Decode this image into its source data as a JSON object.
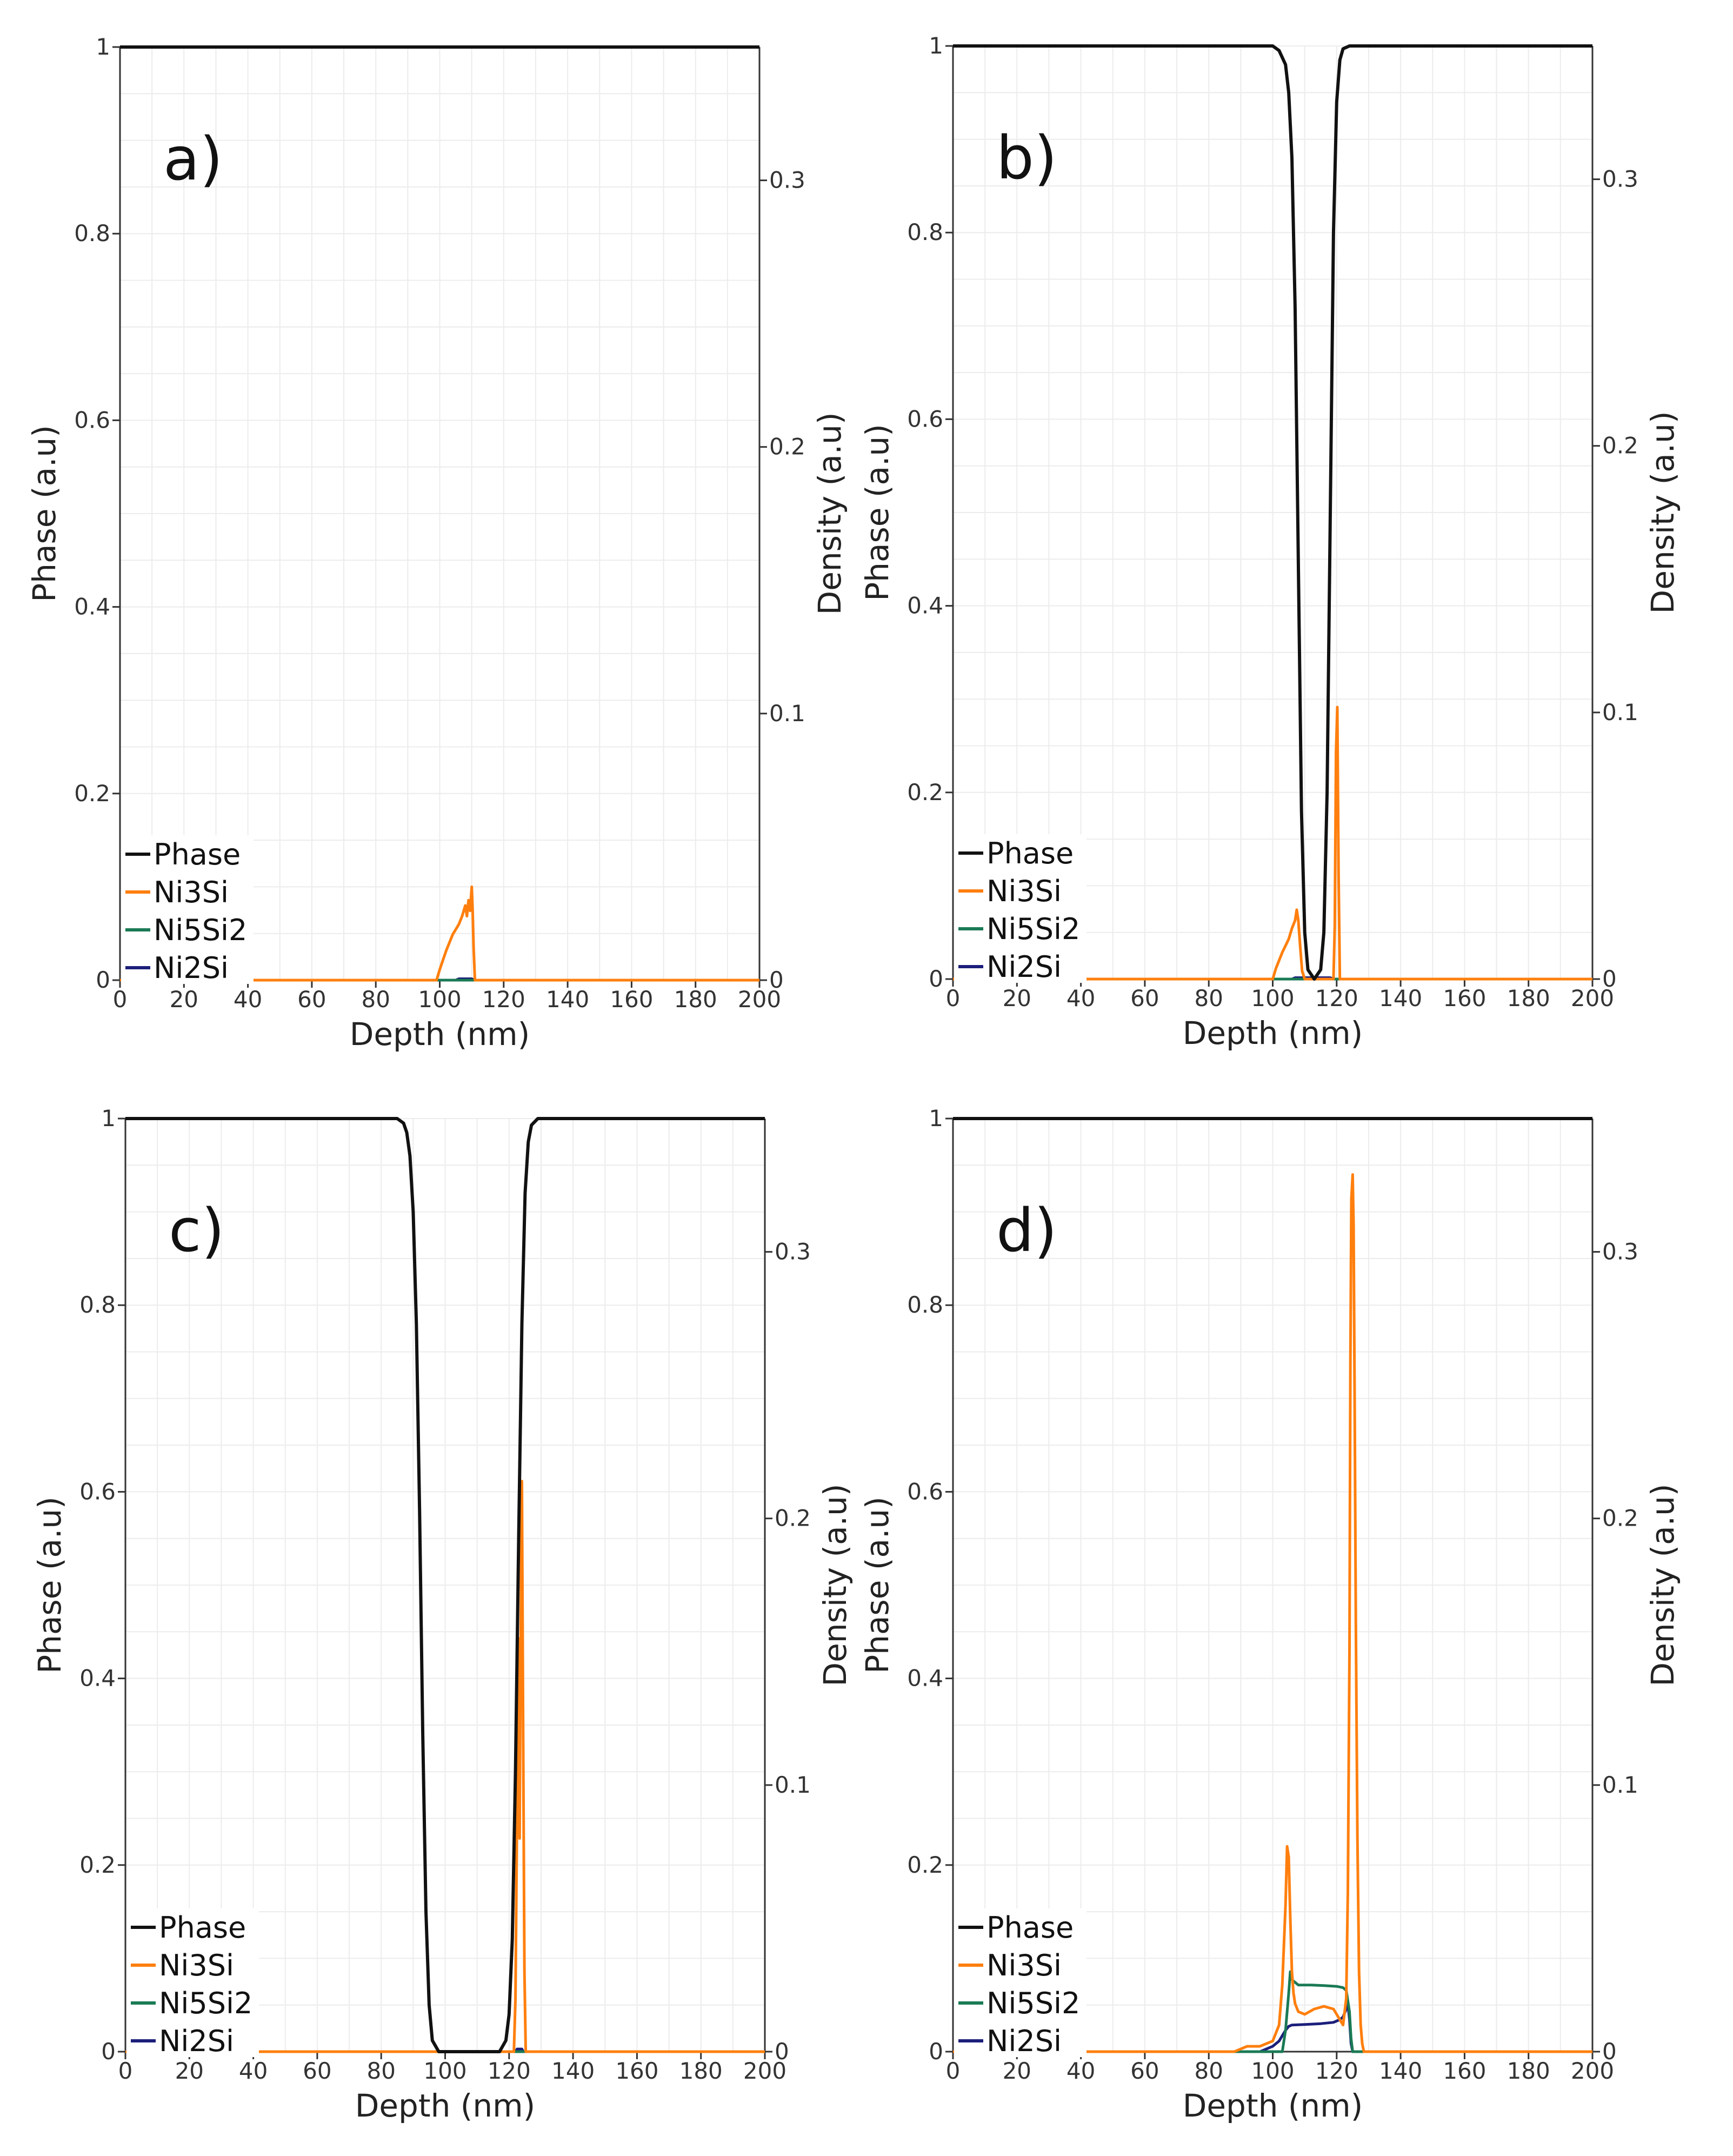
{
  "figure": {
    "colors": {
      "phase": "#111111",
      "ni3si": "#ff7f0e",
      "ni5si2": "#1a7a55",
      "ni2si": "#1c1f7a",
      "grid": "#ececec",
      "axis": "#333333"
    },
    "labels": {
      "xlabel": "Depth (nm)",
      "ylabel_left": "Phase (a.u)",
      "ylabel_right": "Density (a.u)"
    }
  },
  "chart_data": [
    {
      "type": "line",
      "panel": "a)",
      "xlabel": "Depth (nm)",
      "ylabel": "Phase (a.u)",
      "ylabel_right": "Density (a.u)",
      "xlim": [
        0,
        200
      ],
      "ylim": [
        0,
        1
      ],
      "ylim_right": [
        0,
        0.35
      ],
      "xticks": [
        "0",
        "20",
        "40",
        "60",
        "80",
        "100",
        "120",
        "140",
        "160",
        "180",
        "200"
      ],
      "yticks": [
        "0",
        "0.2",
        "0.4",
        "0.6",
        "0.8",
        "1"
      ],
      "yticks_right": [
        "0",
        "0.1",
        "0.2",
        "0.3"
      ],
      "legend": [
        "Phase",
        "Ni3Si",
        "Ni5Si2",
        "Ni2Si"
      ],
      "legend_position": "bottom-left",
      "series": [
        {
          "name": "Phase",
          "axis": "left",
          "color": "#111111",
          "x": [
            0,
            200
          ],
          "y": [
            1,
            1
          ]
        },
        {
          "name": "Ni3Si",
          "axis": "right",
          "color": "#ff7f0e",
          "x": [
            0,
            99,
            100,
            102,
            104,
            106,
            107,
            108,
            108.5,
            109,
            109.5,
            110,
            110.3,
            110.6,
            111,
            200
          ],
          "y": [
            0,
            0,
            0.004,
            0.011,
            0.017,
            0.021,
            0.024,
            0.028,
            0.024,
            0.03,
            0.026,
            0.035,
            0.026,
            0.012,
            0,
            0
          ]
        },
        {
          "name": "Ni5Si2",
          "axis": "right",
          "color": "#1a7a55",
          "x": [
            0,
            200
          ],
          "y": [
            0,
            0
          ]
        },
        {
          "name": "Ni2Si",
          "axis": "right",
          "color": "#1c1f7a",
          "x": [
            0,
            105,
            106,
            110,
            111,
            200
          ],
          "y": [
            0,
            0,
            0.0005,
            0.0005,
            0,
            0
          ]
        }
      ]
    },
    {
      "type": "line",
      "panel": "b)",
      "xlabel": "Depth (nm)",
      "ylabel": "Phase (a.u)",
      "ylabel_right": "Density (a.u)",
      "xlim": [
        0,
        200
      ],
      "ylim": [
        0,
        1
      ],
      "ylim_right": [
        0,
        0.35
      ],
      "xticks": [
        "0",
        "20",
        "40",
        "60",
        "80",
        "100",
        "120",
        "140",
        "160",
        "180",
        "200"
      ],
      "yticks": [
        "0",
        "0.2",
        "0.4",
        "0.6",
        "0.8",
        "1"
      ],
      "yticks_right": [
        "0",
        "0.1",
        "0.2",
        "0.3"
      ],
      "legend": [
        "Phase",
        "Ni3Si",
        "Ni5Si2",
        "Ni2Si"
      ],
      "legend_position": "bottom-left",
      "series": [
        {
          "name": "Phase",
          "axis": "left",
          "color": "#111111",
          "x": [
            0,
            100,
            102,
            104,
            105,
            106,
            107,
            108,
            109,
            110,
            111,
            113,
            115,
            116,
            117,
            118,
            119,
            120,
            121,
            122,
            124,
            200
          ],
          "y": [
            1,
            1,
            0.995,
            0.98,
            0.95,
            0.88,
            0.72,
            0.45,
            0.18,
            0.05,
            0.01,
            0,
            0.01,
            0.05,
            0.2,
            0.5,
            0.8,
            0.94,
            0.985,
            0.997,
            1,
            1
          ]
        },
        {
          "name": "Ni3Si",
          "axis": "right",
          "color": "#ff7f0e",
          "x": [
            0,
            100,
            101,
            103,
            105,
            106,
            107,
            107.5,
            108,
            108.6,
            109.2,
            110,
            119,
            119.4,
            119.8,
            120.2,
            120.6,
            121,
            200
          ],
          "y": [
            0,
            0,
            0.004,
            0.01,
            0.015,
            0.019,
            0.022,
            0.026,
            0.022,
            0.012,
            0.003,
            0,
            0,
            0.02,
            0.085,
            0.102,
            0.04,
            0,
            0
          ]
        },
        {
          "name": "Ni5Si2",
          "axis": "right",
          "color": "#1a7a55",
          "x": [
            0,
            200
          ],
          "y": [
            0,
            0
          ]
        },
        {
          "name": "Ni2Si",
          "axis": "right",
          "color": "#1c1f7a",
          "x": [
            0,
            106,
            107,
            118,
            119,
            200
          ],
          "y": [
            0,
            0,
            0.0005,
            0.0005,
            0,
            0
          ]
        }
      ]
    },
    {
      "type": "line",
      "panel": "c)",
      "xlabel": "Depth (nm)",
      "ylabel": "Phase (a.u)",
      "ylabel_right": "Density (a.u)",
      "xlim": [
        0,
        200
      ],
      "ylim": [
        0,
        1
      ],
      "ylim_right": [
        0,
        0.35
      ],
      "xticks": [
        "0",
        "20",
        "40",
        "60",
        "80",
        "100",
        "120",
        "140",
        "160",
        "180",
        "200"
      ],
      "yticks": [
        "0",
        "0.2",
        "0.4",
        "0.6",
        "0.8",
        "1"
      ],
      "yticks_right": [
        "0",
        "0.1",
        "0.2",
        "0.3"
      ],
      "legend": [
        "Phase",
        "Ni3Si",
        "Ni5Si2",
        "Ni2Si"
      ],
      "legend_position": "bottom-left",
      "series": [
        {
          "name": "Phase",
          "axis": "left",
          "color": "#111111",
          "x": [
            0,
            85,
            87,
            88,
            89,
            90,
            91,
            92,
            93,
            94,
            95,
            96,
            98,
            117,
            119,
            120,
            121,
            122,
            123,
            124,
            125,
            126,
            127,
            129,
            200
          ],
          "y": [
            1,
            1,
            0.995,
            0.985,
            0.96,
            0.9,
            0.78,
            0.58,
            0.34,
            0.15,
            0.05,
            0.012,
            0,
            0,
            0.012,
            0.04,
            0.12,
            0.3,
            0.55,
            0.78,
            0.92,
            0.975,
            0.993,
            1,
            1
          ]
        },
        {
          "name": "Ni3Si",
          "axis": "right",
          "color": "#ff7f0e",
          "x": [
            0,
            121.5,
            122,
            122.5,
            123,
            123.3,
            123.6,
            124,
            124.4,
            124.8,
            125.2,
            200
          ],
          "y": [
            0,
            0,
            0.02,
            0.09,
            0.155,
            0.08,
            0.15,
            0.214,
            0.12,
            0.03,
            0,
            0
          ]
        },
        {
          "name": "Ni5Si2",
          "axis": "right",
          "color": "#1a7a55",
          "x": [
            0,
            200
          ],
          "y": [
            0,
            0
          ]
        },
        {
          "name": "Ni2Si",
          "axis": "right",
          "color": "#1c1f7a",
          "x": [
            0,
            122,
            122.5,
            124,
            124.5,
            200
          ],
          "y": [
            0,
            0,
            0.001,
            0.001,
            0,
            0
          ]
        }
      ]
    },
    {
      "type": "line",
      "panel": "d)",
      "xlabel": "Depth (nm)",
      "ylabel": "Phase (a.u)",
      "ylabel_right": "Density (a.u)",
      "xlim": [
        0,
        200
      ],
      "ylim": [
        0,
        1
      ],
      "ylim_right": [
        0,
        0.35
      ],
      "xticks": [
        "0",
        "20",
        "40",
        "60",
        "80",
        "100",
        "120",
        "140",
        "160",
        "180",
        "200"
      ],
      "yticks": [
        "0",
        "0.2",
        "0.4",
        "0.6",
        "0.8",
        "1"
      ],
      "yticks_right": [
        "0",
        "0.1",
        "0.2",
        "0.3"
      ],
      "legend": [
        "Phase",
        "Ni3Si",
        "Ni5Si2",
        "Ni2Si"
      ],
      "legend_position": "bottom-left",
      "series": [
        {
          "name": "Phase",
          "axis": "left",
          "color": "#111111",
          "x": [
            0,
            200
          ],
          "y": [
            1,
            1
          ]
        },
        {
          "name": "Ni3Si",
          "axis": "right",
          "color": "#ff7f0e",
          "x": [
            0,
            88,
            92,
            96,
            100,
            102,
            103,
            104,
            104.5,
            105,
            105.5,
            106,
            106.5,
            107,
            108,
            110,
            113,
            116,
            119,
            121,
            122,
            123,
            123.5,
            124,
            124.3,
            124.6,
            125,
            125.3,
            125.6,
            126,
            126.5,
            127,
            127.5,
            128,
            128.5,
            200
          ],
          "y": [
            0,
            0,
            0.002,
            0.002,
            0.004,
            0.01,
            0.025,
            0.055,
            0.077,
            0.073,
            0.05,
            0.03,
            0.022,
            0.018,
            0.015,
            0.014,
            0.016,
            0.017,
            0.016,
            0.012,
            0.01,
            0.02,
            0.06,
            0.15,
            0.26,
            0.32,
            0.329,
            0.31,
            0.25,
            0.16,
            0.08,
            0.03,
            0.01,
            0.003,
            0,
            0
          ]
        },
        {
          "name": "Ni5Si2",
          "axis": "right",
          "color": "#1a7a55",
          "x": [
            0,
            103,
            104,
            105,
            105.5,
            106,
            107,
            108,
            112,
            116,
            120,
            122,
            123,
            124,
            124.5,
            125,
            200
          ],
          "y": [
            0,
            0,
            0.008,
            0.022,
            0.03,
            0.027,
            0.026,
            0.025,
            0.025,
            0.0248,
            0.0245,
            0.024,
            0.023,
            0.015,
            0.005,
            0,
            0
          ]
        },
        {
          "name": "Ni2Si",
          "axis": "right",
          "color": "#1c1f7a",
          "x": [
            0,
            96,
            98,
            100,
            102,
            103,
            104,
            105,
            106,
            110,
            115,
            119,
            121,
            122,
            123,
            123.5,
            124,
            124.5,
            125,
            200
          ],
          "y": [
            0,
            0,
            0.001,
            0.002,
            0.004,
            0.006,
            0.008,
            0.0095,
            0.01,
            0.0102,
            0.0105,
            0.011,
            0.012,
            0.013,
            0.016,
            0.018,
            0.012,
            0.003,
            0,
            0
          ]
        }
      ]
    }
  ]
}
